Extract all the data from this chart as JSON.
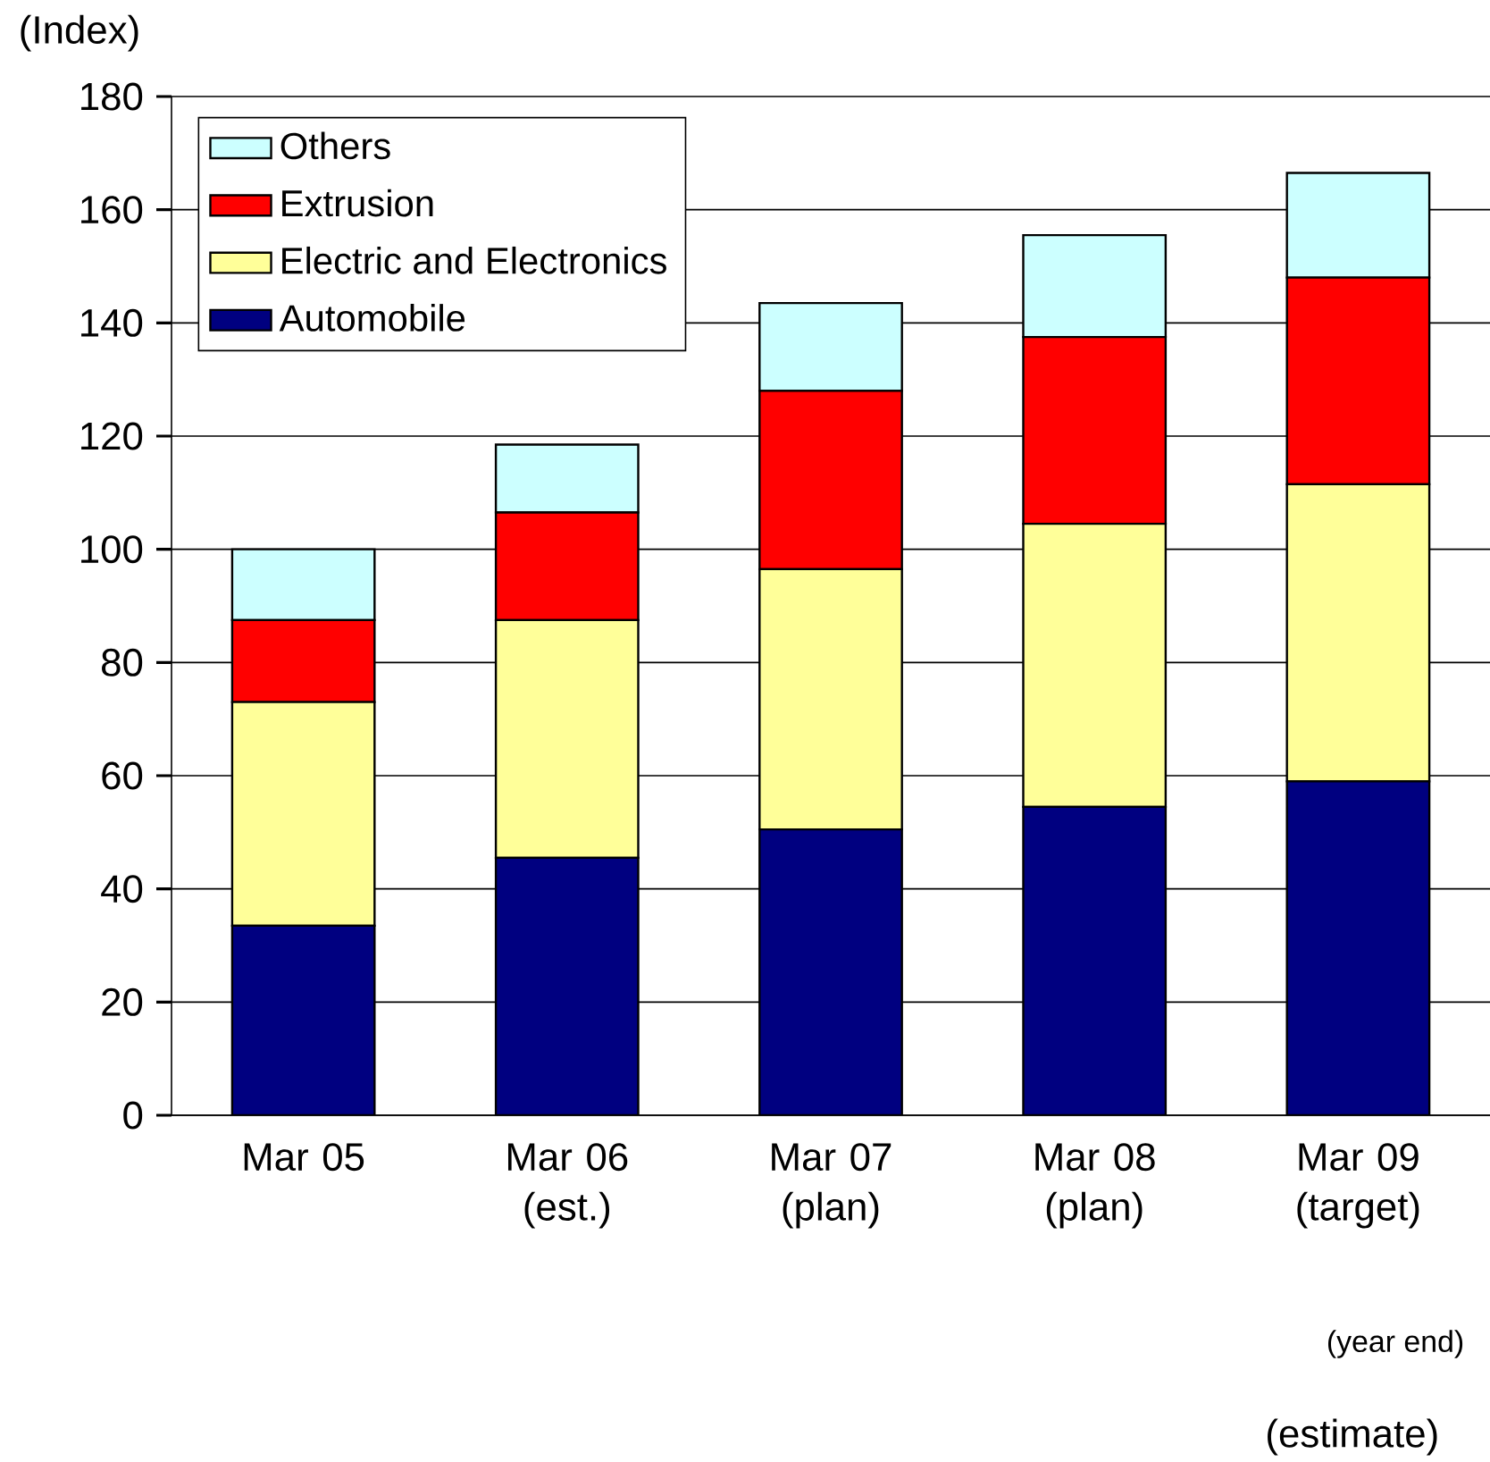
{
  "chart_data": {
    "type": "bar",
    "stacked": true,
    "ylabel": "(Index)",
    "categories": [
      "Mar 05",
      "Mar 06 (est.)",
      "Mar 07 (plan)",
      "Mar 08 (plan)",
      "Mar 09 (target)"
    ],
    "series": [
      {
        "name": "Automobile",
        "color": "#000080",
        "values": [
          33.5,
          45.5,
          50.5,
          54.5,
          59
        ]
      },
      {
        "name": "Electric and Electronics",
        "color": "#ffff99",
        "values": [
          39.5,
          42,
          46,
          50,
          52.5
        ]
      },
      {
        "name": "Extrusion",
        "color": "#ff0000",
        "values": [
          14.5,
          19,
          31.5,
          33,
          36.5
        ]
      },
      {
        "name": "Others",
        "color": "#ccffff",
        "values": [
          12.5,
          12,
          15.5,
          18,
          18.5
        ]
      }
    ],
    "ylim": [
      0,
      180
    ],
    "yticks": [
      0,
      20,
      40,
      60,
      80,
      100,
      120,
      140,
      160,
      180
    ],
    "grid": "y",
    "legend": "top left",
    "annotations": [
      "(year end)",
      "(estimate)"
    ]
  }
}
